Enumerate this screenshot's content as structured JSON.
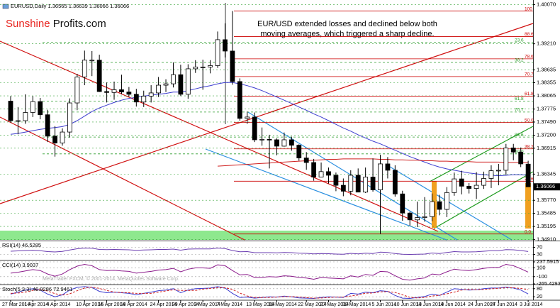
{
  "chart_data": [
    {
      "type": "candlestick",
      "title": "EURUSD,Daily 1.36565 1.36639 1.36066 1.36066",
      "annotation": [
        "EUR/USD extended losses and declined below both",
        "moving averages, which triggered a sharp decline."
      ],
      "logo": [
        "Sunshine",
        "Profits.com"
      ],
      "categories": [
        "27 Mar 2014",
        null,
        null,
        "1 Apr 2014",
        null,
        null,
        "4 Apr 2014",
        null,
        null,
        null,
        "10 Apr 2014",
        null,
        null,
        "15 Apr 2014",
        null,
        null,
        "18 Apr 2014",
        null,
        null,
        null,
        "24 Apr 2014",
        null,
        null,
        "29 Apr 2014",
        null,
        null,
        "2 May 2014",
        null,
        null,
        "7 May 2014",
        null,
        null,
        null,
        "13 May 2014",
        null,
        null,
        "16 May 2014",
        null,
        null,
        null,
        "22 May 2014",
        null,
        null,
        "27 May 2014",
        null,
        null,
        "30 May 2014",
        null,
        null,
        null,
        "5 Jun 2014",
        null,
        null,
        "10 Jun 2014",
        null,
        null,
        "13 Jun 2014",
        null,
        null,
        "18 Jun 2014",
        null,
        null,
        null,
        "24 Jun 2014",
        null,
        null,
        "27 Jun 2014",
        null,
        null,
        null,
        "3 Jul 2014"
      ],
      "open": [
        1.3795,
        1.3752,
        1.3752,
        1.377,
        1.3794,
        1.3765,
        1.3718,
        1.3703,
        1.3727,
        1.3791,
        1.3848,
        1.3885,
        1.3885,
        1.3816,
        1.3814,
        1.382,
        1.3815,
        1.381,
        1.3793,
        1.3806,
        1.3813,
        1.383,
        1.3833,
        1.3853,
        1.381,
        1.3866,
        1.387,
        1.387,
        1.3873,
        1.393,
        1.3905,
        1.3838,
        1.3757,
        1.376,
        1.371,
        1.3711,
        1.371,
        1.3696,
        1.371,
        1.3698,
        1.367,
        1.366,
        1.3628,
        1.364,
        1.3632,
        1.361,
        1.3597,
        1.3632,
        1.3595,
        1.3628,
        1.36,
        1.3657,
        1.3643,
        1.3591,
        1.3549,
        1.3534,
        1.3539,
        1.3541,
        1.3574,
        1.3557,
        1.3594,
        1.3624,
        1.3608,
        1.3603,
        1.361,
        1.3625,
        1.3642,
        1.3643,
        1.3692,
        1.3683,
        1.36565
      ],
      "high": [
        1.3806,
        1.3782,
        1.381,
        1.3806,
        1.3802,
        1.3776,
        1.374,
        1.3735,
        1.3801,
        1.3855,
        1.3906,
        1.3905,
        1.3897,
        1.3836,
        1.3838,
        1.3853,
        1.3826,
        1.3822,
        1.3818,
        1.383,
        1.3848,
        1.3843,
        1.388,
        1.3875,
        1.3876,
        1.3885,
        1.3886,
        1.3885,
        1.3948,
        1.3966,
        1.3993,
        1.3845,
        1.3772,
        1.377,
        1.3737,
        1.3721,
        1.3713,
        1.3726,
        1.3717,
        1.37,
        1.3683,
        1.3668,
        1.366,
        1.3649,
        1.3638,
        1.3625,
        1.3643,
        1.3647,
        1.3649,
        1.3669,
        1.3677,
        1.3672,
        1.3654,
        1.3598,
        1.3552,
        1.3574,
        1.3584,
        1.3592,
        1.3589,
        1.3606,
        1.3638,
        1.3642,
        1.3615,
        1.3639,
        1.364,
        1.3654,
        1.3657,
        1.3701,
        1.3701,
        1.3693,
        1.36639
      ],
      "low": [
        1.3748,
        1.3722,
        1.3745,
        1.376,
        1.3755,
        1.3705,
        1.3673,
        1.3697,
        1.3715,
        1.3775,
        1.383,
        1.385,
        1.3815,
        1.3792,
        1.3798,
        1.381,
        1.3805,
        1.3783,
        1.3782,
        1.3792,
        1.3804,
        1.3815,
        1.3825,
        1.3806,
        1.38,
        1.3857,
        1.382,
        1.3856,
        1.3868,
        1.3891,
        1.3831,
        1.3752,
        1.3745,
        1.3705,
        1.3697,
        1.3647,
        1.3676,
        1.3695,
        1.3686,
        1.3664,
        1.3644,
        1.362,
        1.3628,
        1.3614,
        1.3597,
        1.3586,
        1.3588,
        1.3595,
        1.3593,
        1.3596,
        1.3503,
        1.3625,
        1.3585,
        1.3532,
        1.3521,
        1.3518,
        1.353,
        1.3531,
        1.3544,
        1.354,
        1.3587,
        1.359,
        1.3592,
        1.358,
        1.3602,
        1.3604,
        1.361,
        1.3633,
        1.3665,
        1.365,
        1.36066
      ],
      "close": [
        1.3752,
        1.3752,
        1.377,
        1.3794,
        1.3765,
        1.3718,
        1.3703,
        1.3727,
        1.3791,
        1.3848,
        1.3885,
        1.3885,
        1.3816,
        1.3814,
        1.382,
        1.3815,
        1.381,
        1.3793,
        1.3806,
        1.3813,
        1.383,
        1.3833,
        1.3853,
        1.381,
        1.3866,
        1.387,
        1.387,
        1.3873,
        1.393,
        1.3905,
        1.3838,
        1.3757,
        1.376,
        1.371,
        1.3711,
        1.371,
        1.3696,
        1.371,
        1.3698,
        1.367,
        1.366,
        1.3628,
        1.364,
        1.3632,
        1.361,
        1.3597,
        1.3632,
        1.3595,
        1.3628,
        1.36,
        1.3657,
        1.3643,
        1.3591,
        1.3549,
        1.3534,
        1.3539,
        1.3541,
        1.3574,
        1.3557,
        1.3594,
        1.3624,
        1.3608,
        1.3603,
        1.361,
        1.3625,
        1.3642,
        1.3643,
        1.3692,
        1.3683,
        1.3657,
        1.36066
      ],
      "series": [
        {
          "color": "#3c3ccf",
          "values": [
            1.3722,
            1.3724,
            1.3727,
            1.373,
            1.3733,
            1.3735,
            1.3737,
            1.3739,
            1.3744,
            1.3752,
            1.3762,
            1.3772,
            1.378,
            1.3786,
            1.3792,
            1.3797,
            1.3801,
            1.3803,
            1.3806,
            1.3808,
            1.381,
            1.3812,
            1.3815,
            1.3815,
            1.3818,
            1.3822,
            1.3826,
            1.3829,
            1.3833,
            1.3836,
            1.3836,
            1.3833,
            1.3829,
            1.3824,
            1.3818,
            1.3811,
            1.3804,
            1.3797,
            1.379,
            1.3782,
            1.3775,
            1.3767,
            1.376,
            1.3752,
            1.3744,
            1.3736,
            1.3729,
            1.3721,
            1.3714,
            1.3707,
            1.3701,
            1.3694,
            1.3687,
            1.368,
            1.3673,
            1.3667,
            1.3661,
            1.3655,
            1.365,
            1.3646,
            1.3643,
            1.364,
            1.3637,
            1.3635,
            1.3633,
            1.3632,
            1.3631,
            1.3632,
            1.3633,
            1.3633,
            1.3632
          ]
        },
        {
          "color": "#d02020",
          "values": [
            null,
            null,
            null,
            null,
            null,
            null,
            null,
            null,
            null,
            null,
            null,
            null,
            null,
            null,
            null,
            null,
            null,
            null,
            null,
            null,
            null,
            null,
            null,
            null,
            null,
            null,
            null,
            null,
            1.3652,
            1.3653,
            1.3654,
            1.3655,
            1.3656,
            1.3657,
            1.3658,
            1.3659,
            1.366,
            1.3661,
            1.3662,
            1.3663,
            1.3664,
            1.3665,
            1.3666,
            1.3667,
            1.3667,
            1.3668,
            1.3668,
            1.3668,
            1.3668,
            1.3668,
            1.3667,
            1.3667,
            1.3666,
            1.3666,
            1.3665,
            1.3665,
            1.3664,
            1.3664,
            1.3663,
            1.3663,
            1.3662,
            1.3662,
            1.3662,
            1.3661,
            1.3661,
            1.3661,
            1.3661,
            1.366,
            1.366,
            1.366,
            1.366
          ]
        }
      ],
      "fibonacci": [
        {
          "color": "#cc0000",
          "style": "solid",
          "levels": [
            {
              "ratio": "100",
              "price": 1.3993
            },
            {
              "ratio": "88.6",
              "price": 1.3937
            },
            {
              "ratio": "78.6",
              "price": 1.3888
            },
            {
              "ratio": "70.7",
              "price": 1.3849
            },
            {
              "ratio": "61.8",
              "price": 1.3806
            },
            {
              "ratio": "50.0",
              "price": 1.3748
            },
            {
              "ratio": "38.2",
              "price": 1.369
            },
            {
              "ratio": "23.6",
              "price": 1.3619
            },
            {
              "ratio": "0.0",
              "price": 1.3503
            }
          ]
        },
        {
          "color": "#2e9e2e",
          "style": "dashed",
          "levels": [
            {
              "ratio": "23.6",
              "price": 1.3924
            },
            {
              "ratio": "38.2",
              "price": 1.388
            },
            {
              "ratio": "61.8",
              "price": 1.3795
            },
            {
              "ratio": "70.7",
              "price": 1.3771
            },
            {
              "ratio": "88.6",
              "price": 1.3716
            },
            {
              "ratio": "50.0",
              "price": 1.3679
            }
          ]
        }
      ],
      "price_marker": {
        "value": 1.36066,
        "label": "1.36066"
      },
      "ylim": [
        1.349,
        1.4011
      ],
      "yticks": [
        {
          "value": 1.4007,
          "label": "1.40070"
        },
        {
          "value": 1.3921,
          "label": "1.39210"
        },
        {
          "value": 1.38635,
          "label": "1.38635"
        },
        {
          "value": 1.38355,
          "label": "1.38355"
        },
        {
          "value": 1.38065,
          "label": "1.38065"
        },
        {
          "value": 1.37775,
          "label": "1.37775"
        },
        {
          "value": 1.3749,
          "label": "1.37490"
        },
        {
          "value": 1.372,
          "label": "1.37200"
        },
        {
          "value": 1.36915,
          "label": "1.36915"
        },
        {
          "value": 1.36345,
          "label": "1.36345"
        },
        {
          "value": 1.3577,
          "label": "1.35770"
        },
        {
          "value": 1.35485,
          "label": "1.35485"
        },
        {
          "value": 1.35195,
          "label": "1.35195"
        },
        {
          "value": 1.3491,
          "label": "1.34910"
        }
      ],
      "grid": true,
      "grid_color": "#3aa53a"
    },
    {
      "type": "line",
      "title": "RSI(14) 46.5285",
      "ylim": [
        0,
        100
      ],
      "yticks": [
        70,
        30
      ],
      "grid": true,
      "grid_color": "#999999",
      "series": [
        {
          "color": "#6a3cb0",
          "values": [
            48,
            50,
            52,
            54,
            51,
            46,
            44,
            47,
            55,
            62,
            66,
            65,
            58,
            57,
            58,
            57,
            56,
            53,
            55,
            56,
            58,
            58,
            60,
            54,
            60,
            61,
            61,
            61,
            66,
            63,
            52,
            45,
            46,
            40,
            40,
            40,
            39,
            41,
            40,
            37,
            36,
            33,
            35,
            34,
            32,
            31,
            36,
            33,
            37,
            35,
            43,
            41,
            35,
            31,
            30,
            31,
            32,
            38,
            35,
            41,
            46,
            44,
            44,
            45,
            48,
            51,
            51,
            57,
            56,
            52,
            46.5285
          ]
        }
      ]
    },
    {
      "type": "line",
      "title": "CCI(14) 3.9037",
      "annotation": "MetaTrader FXCM, © 2001-2014, MetaQuotes Software Corp.",
      "ylim": [
        -265.4293,
        237.5915
      ],
      "yticks": [
        237.5915,
        100,
        -100,
        -265.4293
      ],
      "grid": true,
      "grid_color": "#999999",
      "series": [
        {
          "color": "#8b1a8b",
          "values": [
            -20,
            0,
            30,
            60,
            40,
            -40,
            -90,
            -40,
            60,
            140,
            180,
            150,
            60,
            40,
            45,
            30,
            20,
            -20,
            0,
            20,
            50,
            60,
            90,
            10,
            70,
            100,
            100,
            90,
            170,
            150,
            40,
            -60,
            -50,
            -120,
            -120,
            -100,
            -110,
            -80,
            -90,
            -120,
            -130,
            -160,
            -120,
            -130,
            -140,
            -150,
            -80,
            -110,
            -50,
            -70,
            20,
            10,
            -80,
            -160,
            -180,
            -150,
            -130,
            -40,
            -60,
            10,
            70,
            50,
            40,
            60,
            90,
            110,
            110,
            180,
            150,
            80,
            3.9037
          ]
        }
      ]
    },
    {
      "type": "line",
      "title": "Stoch(5,3,3) 40.9286 72.9461",
      "ylim": [
        0,
        100
      ],
      "yticks": [
        80,
        20
      ],
      "grid": true,
      "grid_color": "#999999",
      "series": [
        {
          "color": "#3c3ccf",
          "values": [
            40,
            55,
            70,
            80,
            70,
            40,
            20,
            35,
            70,
            90,
            95,
            90,
            60,
            50,
            55,
            50,
            45,
            35,
            45,
            55,
            65,
            70,
            80,
            50,
            70,
            80,
            82,
            85,
            95,
            85,
            45,
            15,
            18,
            10,
            15,
            20,
            18,
            25,
            20,
            12,
            10,
            8,
            15,
            20,
            18,
            15,
            45,
            40,
            55,
            50,
            65,
            60,
            30,
            10,
            8,
            15,
            22,
            40,
            30,
            55,
            80,
            75,
            70,
            72,
            80,
            85,
            85,
            92,
            85,
            70,
            40.9286
          ]
        },
        {
          "color": "#d02020",
          "dash": true,
          "values": [
            45,
            48,
            55,
            68,
            73,
            63,
            43,
            32,
            42,
            65,
            85,
            92,
            82,
            67,
            55,
            52,
            50,
            45,
            45,
            45,
            55,
            63,
            72,
            67,
            67,
            67,
            77,
            82,
            87,
            88,
            75,
            48,
            26,
            14,
            14,
            15,
            18,
            21,
            21,
            19,
            14,
            10,
            11,
            14,
            18,
            18,
            26,
            33,
            47,
            48,
            57,
            58,
            52,
            35,
            16,
            11,
            15,
            26,
            31,
            42,
            55,
            70,
            75,
            72,
            74,
            79,
            83,
            87,
            87,
            82,
            72.9461
          ]
        }
      ]
    }
  ]
}
